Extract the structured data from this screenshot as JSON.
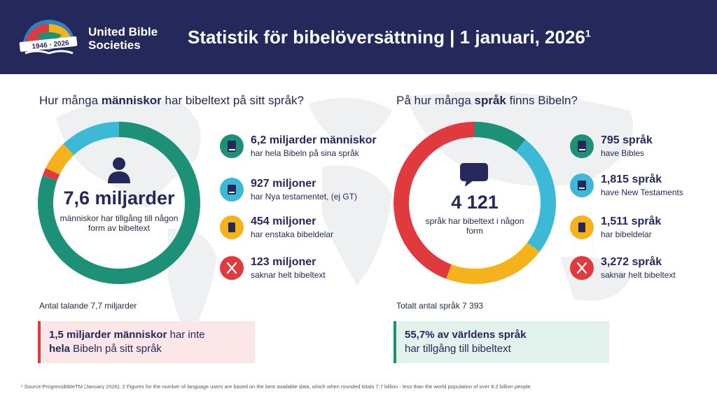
{
  "header": {
    "logo_years": "1946 · 2026",
    "logo_line1": "United Bible",
    "logo_line2": "Societies",
    "title": "Statistik för bibelöversättning | 1 januari, 2026",
    "title_sup": "1"
  },
  "colors": {
    "navy": "#25285a",
    "green": "#1c9178",
    "cyan": "#3cb9d7",
    "yellow": "#f6b21a",
    "red": "#e03a3e"
  },
  "left": {
    "question_pre": "Hur många ",
    "question_bold": "människor",
    "question_post": " har bibeltext på sitt språk?",
    "center_value": "7,6 miljarder",
    "center_text": "människor har tillgång till någon form av bibeltext",
    "icon": "person-icon",
    "legend": [
      {
        "title": "6,2 miljarder människor",
        "sub": "har hela Bibeln på sina språk",
        "color": "#1c9178",
        "icon": "bible-icon"
      },
      {
        "title": "927 miljoner",
        "sub": "har Nya testamentet, (ej GT)",
        "color": "#3cb9d7",
        "icon": "book-icon"
      },
      {
        "title": "454 miljoner",
        "sub": "har enstaka bibeldelar",
        "color": "#f6b21a",
        "icon": "booklet-icon"
      },
      {
        "title": "123 miljoner",
        "sub": "saknar helt bibeltext",
        "color": "#e03a3e",
        "icon": "cross-icon"
      }
    ],
    "note": "Antal talande 7,7 miljarder",
    "callout_bold1": "1,5 miljarder människor",
    "callout_text1": " har inte",
    "callout_bold2": "hela",
    "callout_text2": " Bibeln på sitt språk"
  },
  "right": {
    "question_pre": "På hur många ",
    "question_bold": "språk",
    "question_post": " finns Bibeln?",
    "center_value": "4 121",
    "center_text": "språk har bibeltext i någon form",
    "icon": "speech-bubble-icon",
    "legend": [
      {
        "title": "795 språk",
        "sub": "have Bibles",
        "color": "#1c9178",
        "icon": "bible-icon"
      },
      {
        "title": "1,815 språk",
        "sub": "have New Testaments",
        "color": "#3cb9d7",
        "icon": "book-icon"
      },
      {
        "title": "1,511 språk",
        "sub": "har bibeldelar",
        "color": "#f6b21a",
        "icon": "booklet-icon"
      },
      {
        "title": "3,272 språk",
        "sub": "saknar helt bibeltext",
        "color": "#e03a3e",
        "icon": "cross-icon"
      }
    ],
    "note": "Totalt antal språk 7 393",
    "callout_line1": "55,7% av världens språk",
    "callout_line2": "har tillgång till bibeltext"
  },
  "chart_data": [
    {
      "type": "pie",
      "donut": true,
      "categories": [
        "Hela Bibeln",
        "Nya testamentet",
        "Bibeldelar",
        "Saknar bibeltext"
      ],
      "values": [
        6.2,
        0.927,
        0.454,
        0.123
      ],
      "colors": [
        "#1c9178",
        "#3cb9d7",
        "#f6b21a",
        "#e03a3e"
      ],
      "start": "top",
      "direction": "clockwise",
      "order": [
        0,
        3,
        2,
        1
      ]
    },
    {
      "type": "pie",
      "donut": true,
      "categories": [
        "Bibeln",
        "Nya testamentet",
        "Bibeldelar",
        "Saknar bibeltext"
      ],
      "values": [
        795,
        1815,
        1511,
        3272
      ],
      "colors": [
        "#1c9178",
        "#3cb9d7",
        "#f6b21a",
        "#e03a3e"
      ],
      "start": "top",
      "direction": "clockwise",
      "order": [
        0,
        1,
        2,
        3
      ]
    }
  ],
  "footnote": "¹ Source:ProgressBibleTM (January 2026). 2 Figures for the number of language users are based on the best available data, which when rounded totals 7.7 billion - less than the world population of over 8.2 billion people."
}
